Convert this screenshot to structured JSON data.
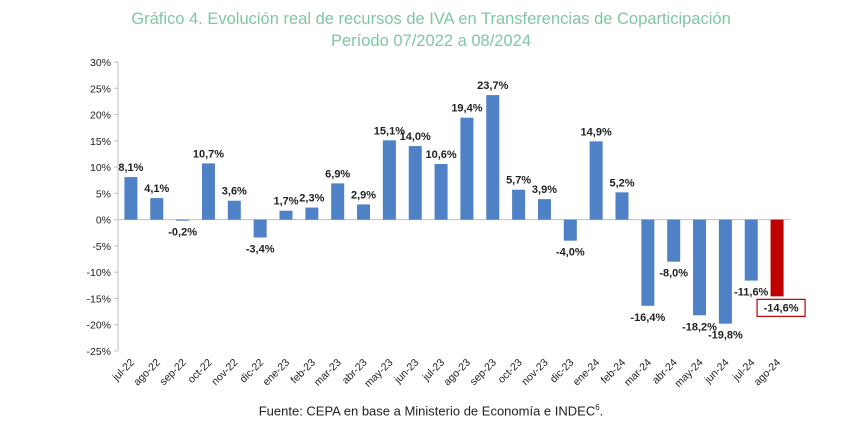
{
  "chart_data": {
    "type": "bar",
    "title": "Gráfico 4. Evolución real de recursos de IVA en Transferencias de Coparticipación",
    "subtitle": "Período 07/2022 a 08/2024",
    "ylim": [
      -25,
      30
    ],
    "yticks": [
      "-25%",
      "-20%",
      "-15%",
      "-10%",
      "-5%",
      "0%",
      "5%",
      "10%",
      "15%",
      "20%",
      "25%",
      "30%"
    ],
    "categories": [
      "jul-22",
      "ago-22",
      "sep-22",
      "oct-22",
      "nov-22",
      "dic-22",
      "ene-23",
      "feb-23",
      "mar-23",
      "abr-23",
      "may-23",
      "jun-23",
      "jul-23",
      "ago-23",
      "sep-23",
      "oct-23",
      "nov-23",
      "dic-23",
      "ene-24",
      "feb-24",
      "mar-24",
      "abr-24",
      "may-24",
      "jun-24",
      "jul-24",
      "ago-24"
    ],
    "values": [
      8.1,
      4.1,
      -0.2,
      10.7,
      3.6,
      -3.4,
      1.7,
      2.3,
      6.9,
      2.9,
      15.1,
      14.0,
      10.6,
      19.4,
      23.7,
      5.7,
      3.9,
      -4.0,
      14.9,
      5.2,
      -16.4,
      -8.0,
      -18.2,
      -19.8,
      -11.6,
      -14.6
    ],
    "labels": [
      "8,1%",
      "4,1%",
      "-0,2%",
      "10,7%",
      "3,6%",
      "-3,4%",
      "1,7%",
      "2,3%",
      "6,9%",
      "2,9%",
      "15,1%",
      "14,0%",
      "10,6%",
      "19,4%",
      "23,7%",
      "5,7%",
      "3,9%",
      "-4,0%",
      "14,9%",
      "5,2%",
      "-16,4%",
      "-8,0%",
      "-18,2%",
      "-19,8%",
      "-11,6%",
      "-14,6%"
    ],
    "highlight_index": 25,
    "colors": {
      "bar": "#4f81c6",
      "highlight": "#c00000",
      "title": "#7fc7a3"
    },
    "grid": false
  },
  "source": {
    "text": "Fuente: CEPA en base a Ministerio de Economía e INDEC",
    "superscript": "6",
    "suffix": "."
  }
}
